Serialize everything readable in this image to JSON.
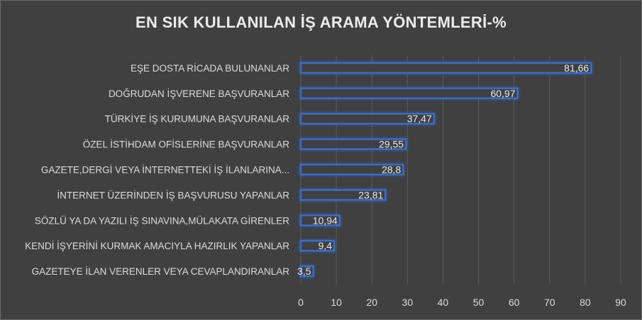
{
  "chart_data": {
    "type": "bar",
    "orientation": "horizontal",
    "title": "EN SIK KULLANILAN İŞ ARAMA YÖNTEMLERİ-%",
    "categories": [
      "EŞE DOSTA RİCADA BULUNANLAR",
      "DOĞRUDAN İŞVERENE BAŞVURANLAR",
      "TÜRKİYE İŞ KURUMUNA BAŞVURANLAR",
      "ÖZEL İSTİHDAM OFİSLERİNE BAŞVURANLAR",
      "GAZETE,DERGİ VEYA İNTERNETTEKİ İŞ İLANLARINA...",
      "İNTERNET ÜZERİNDEN İŞ BAŞVURUSU YAPANLAR",
      "SÖZLÜ YA DA YAZILI İŞ SINAVINA,MÜLAKATA GİRENLER",
      "KENDİ İŞYERİNİ KURMAK AMACIYLA HAZIRLIK YAPANLAR",
      "GAZETEYE İLAN VERENLER VEYA CEVAPLANDIRANLAR"
    ],
    "values": [
      81.66,
      60.97,
      37.47,
      29.55,
      28.8,
      23.81,
      10.94,
      9.4,
      3.5
    ],
    "value_labels": [
      "81,66",
      "60,97",
      "37,47",
      "29,55",
      "28,8",
      "23,81",
      "10,94",
      "9,4",
      "3,5"
    ],
    "xlim": [
      0,
      90
    ],
    "xticks": [
      0,
      10,
      20,
      30,
      40,
      50,
      60,
      70,
      80,
      90
    ],
    "grid": "vertical",
    "colors": {
      "background": "#404040",
      "bar_fill": "#404040",
      "bar_edge": "#4472C4",
      "bar_glow": "#2f6bd8",
      "grid": "#5c5c5c",
      "text": "#dcdcdc"
    }
  }
}
